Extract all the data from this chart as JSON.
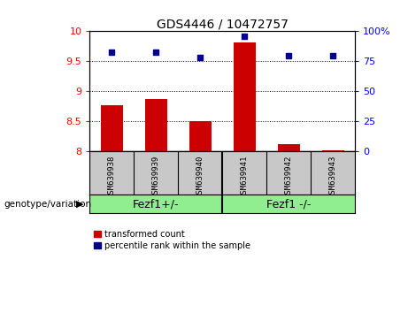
{
  "title": "GDS4446 / 10472757",
  "samples": [
    "GSM639938",
    "GSM639939",
    "GSM639940",
    "GSM639941",
    "GSM639942",
    "GSM639943"
  ],
  "red_values": [
    8.77,
    8.87,
    8.5,
    9.82,
    8.12,
    8.02
  ],
  "blue_values": [
    83,
    83,
    78,
    96,
    80,
    80
  ],
  "ylim_left": [
    8.0,
    10.0
  ],
  "ylim_right": [
    0,
    100
  ],
  "yticks_left": [
    8.0,
    8.5,
    9.0,
    9.5,
    10.0
  ],
  "yticks_right": [
    0,
    25,
    50,
    75,
    100
  ],
  "group1_label": "Fezf1+/-",
  "group2_label": "Fezf1 -/-",
  "group_label_prefix": "genotype/variation",
  "legend_red": "transformed count",
  "legend_blue": "percentile rank within the sample",
  "bar_color": "#CC0000",
  "dot_color": "#00008B",
  "background_labels": "#C8C8C8",
  "background_group": "#90EE90",
  "title_fontsize": 10,
  "tick_fontsize": 8,
  "sample_fontsize": 6.5,
  "group_fontsize": 9,
  "legend_fontsize": 7
}
